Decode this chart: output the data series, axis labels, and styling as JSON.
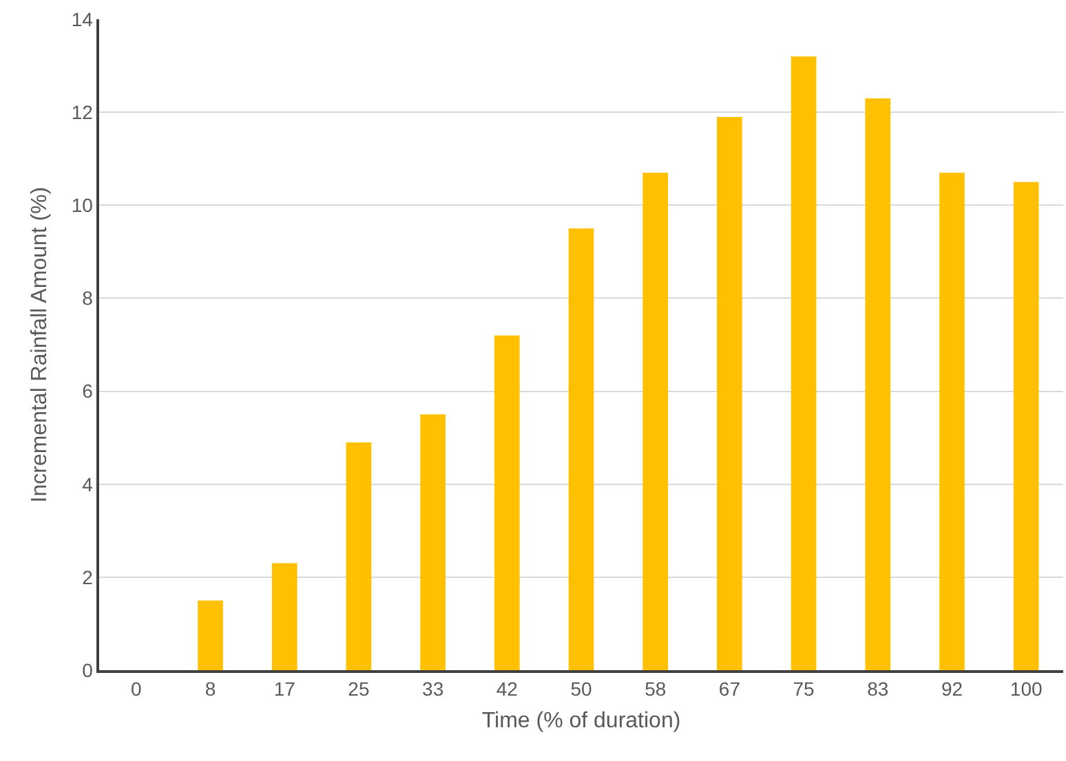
{
  "chart_data": {
    "type": "bar",
    "xlabel": "Time (% of duration)",
    "ylabel": "Incremental Rainfall Amount (%)",
    "categories": [
      "0",
      "8",
      "17",
      "25",
      "33",
      "42",
      "50",
      "58",
      "67",
      "75",
      "83",
      "92",
      "100"
    ],
    "values": [
      0,
      1.5,
      2.3,
      4.9,
      5.5,
      7.2,
      9.5,
      10.7,
      11.9,
      13.2,
      12.3,
      10.7,
      10.5
    ],
    "color": "#ffc000",
    "ylim": [
      0,
      14
    ],
    "yticks": [
      0,
      2,
      4,
      6,
      8,
      10,
      12,
      14
    ],
    "grid": "y"
  }
}
